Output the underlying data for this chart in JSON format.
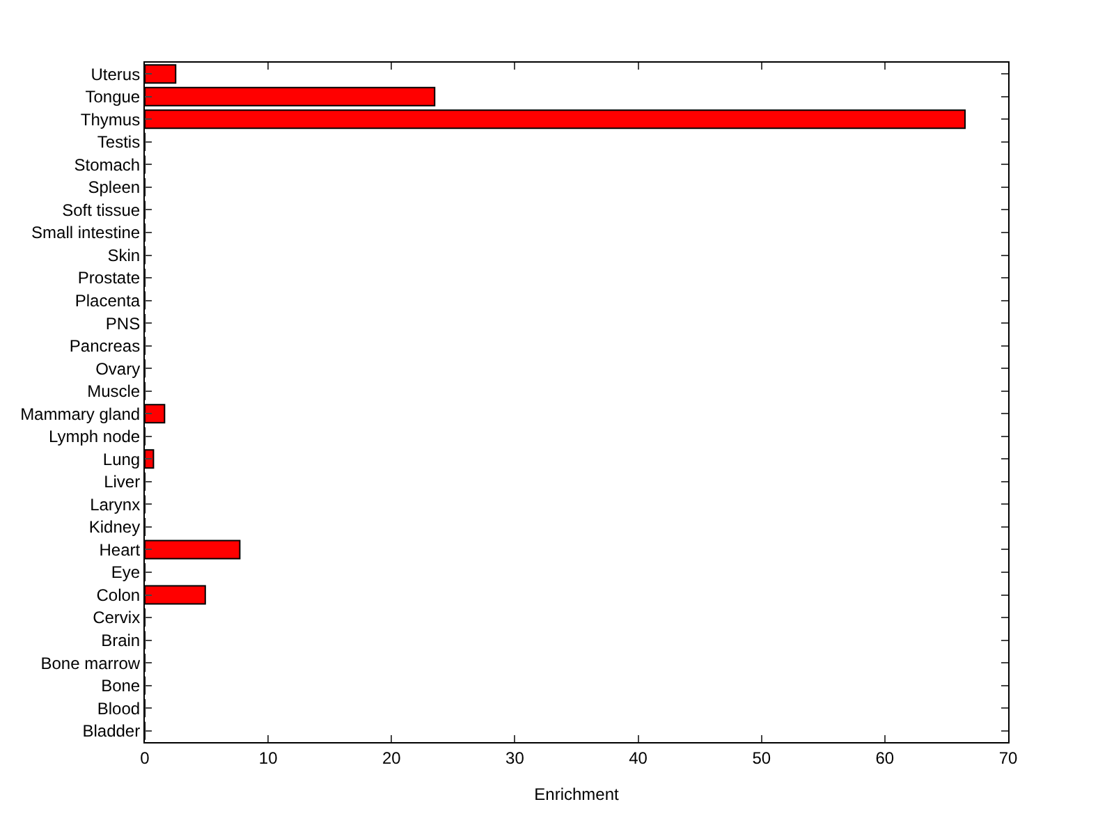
{
  "chart_data": {
    "type": "bar",
    "orientation": "horizontal",
    "xlabel": "Enrichment",
    "categories": [
      "Uterus",
      "Tongue",
      "Thymus",
      "Testis",
      "Stomach",
      "Spleen",
      "Soft tissue",
      "Small intestine",
      "Skin",
      "Prostate",
      "Placenta",
      "PNS",
      "Pancreas",
      "Ovary",
      "Muscle",
      "Mammary gland",
      "Lymph node",
      "Lung",
      "Liver",
      "Larynx",
      "Kidney",
      "Heart",
      "Eye",
      "Colon",
      "Cervix",
      "Brain",
      "Bone marrow",
      "Bone",
      "Blood",
      "Bladder"
    ],
    "values": [
      2.5,
      23.5,
      66.5,
      0,
      0,
      0,
      0,
      0,
      0,
      0,
      0,
      0,
      0,
      0,
      0,
      1.6,
      0,
      0.7,
      0,
      0,
      0,
      7.7,
      0,
      4.9,
      0,
      0,
      0,
      0,
      0,
      0
    ],
    "color": "#ff0000",
    "xlim": [
      0,
      70
    ],
    "xticks": [
      0,
      10,
      20,
      30,
      40,
      50,
      60,
      70
    ]
  }
}
